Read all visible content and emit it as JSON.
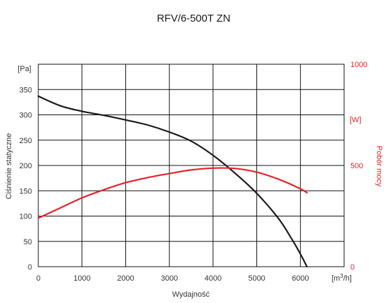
{
  "chart_data": {
    "type": "line",
    "title": "RFV/6-500T ZN",
    "xlabel": "Wydajność",
    "x_unit_prefix": "[m",
    "x_unit_sup": "3",
    "x_unit_suffix": "/h]",
    "ylabel_left": "Ciśnienie statyczne",
    "ylabel_right": "Pobór mocy",
    "y_unit_left": "[Pa]",
    "y_unit_right": "[W]",
    "xlim": [
      0,
      7000
    ],
    "ylim_left": [
      0,
      400
    ],
    "ylim_right": [
      0,
      1000
    ],
    "grid": true,
    "x_ticks": [
      0,
      1000,
      2000,
      3000,
      4000,
      5000,
      6000
    ],
    "y_left_ticks": [
      0,
      50,
      100,
      150,
      200,
      250,
      300,
      350
    ],
    "y_right_ticks": [
      0,
      500,
      1000
    ],
    "colors": {
      "pressure": "#1a1a1a",
      "power": "#e2232a",
      "grid": "#111111",
      "text": "#333333"
    },
    "series": [
      {
        "axis": "left",
        "color": "#1a1a1a",
        "x": [
          0,
          500,
          1000,
          1500,
          2000,
          2500,
          3000,
          3500,
          4000,
          4500,
          5000,
          5500,
          5800,
          6000,
          6150
        ],
        "values": [
          337,
          318,
          307,
          299,
          290,
          280,
          266,
          248,
          220,
          185,
          145,
          95,
          55,
          25,
          0
        ]
      },
      {
        "axis": "right",
        "color": "#e2232a",
        "x": [
          0,
          500,
          1000,
          1500,
          2000,
          2500,
          3000,
          3500,
          4000,
          4500,
          5000,
          5500,
          6000,
          6150
        ],
        "values": [
          240,
          290,
          340,
          380,
          415,
          440,
          460,
          478,
          487,
          485,
          467,
          432,
          385,
          365
        ]
      }
    ]
  }
}
